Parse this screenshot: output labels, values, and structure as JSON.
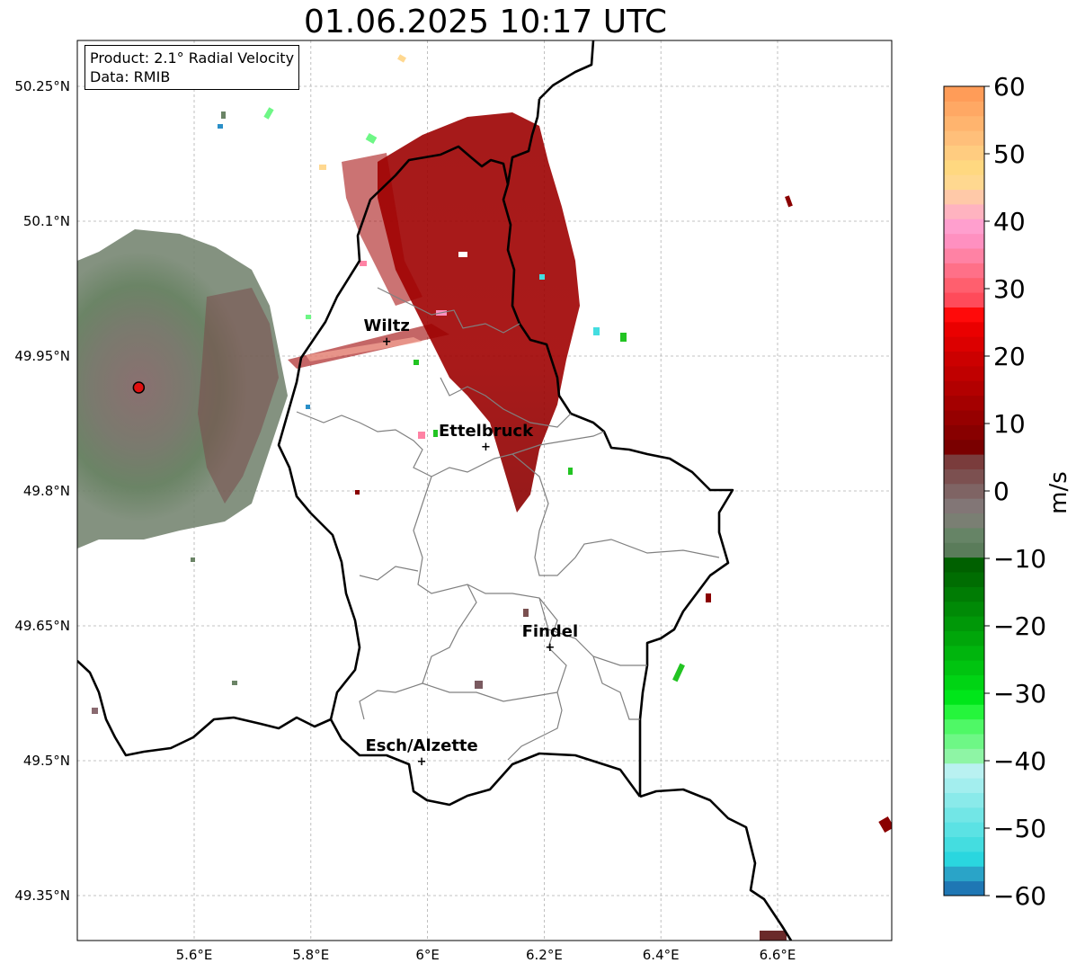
{
  "title": "01.06.2025 10:17 UTC",
  "product_box": {
    "product": "Product: 2.1° Radial Velocity",
    "data": "Data: RMIB"
  },
  "lon_ticks": [
    "5.6°E",
    "5.8°E",
    "6°E",
    "6.2°E",
    "6.4°E",
    "6.6°E"
  ],
  "lat_ticks": [
    "50.25°N",
    "50.1°N",
    "49.95°N",
    "49.8°N",
    "49.65°N",
    "49.5°N",
    "49.35°N"
  ],
  "cities": [
    {
      "name": "Wiltz",
      "lon": 5.93,
      "lat": 49.967
    },
    {
      "name": "Ettelbruck",
      "lon": 6.1,
      "lat": 49.85
    },
    {
      "name": "Findel",
      "lon": 6.21,
      "lat": 49.627
    },
    {
      "name": "Esch/Alzette",
      "lon": 5.99,
      "lat": 49.5
    }
  ],
  "radar_site": {
    "lon": 5.505,
    "lat": 49.915
  },
  "colorbar": {
    "label": "m/s",
    "min": -60,
    "max": 60,
    "ticks": [
      "60",
      "50",
      "40",
      "30",
      "20",
      "10",
      "0",
      "−10",
      "−20",
      "−30",
      "−40",
      "−50",
      "−60"
    ],
    "colors": [
      "#1f77b4",
      "#2aa4c8",
      "#2ad6df",
      "#44dde0",
      "#5be2e4",
      "#72e6e6",
      "#8aeaea",
      "#a3eeee",
      "#b9f1f1",
      "#8ef5a5",
      "#6ef786",
      "#4ff866",
      "#25f53c",
      "#00e61a",
      "#00d414",
      "#00c410",
      "#00b50d",
      "#00a60a",
      "#009808",
      "#008a06",
      "#007c04",
      "#006d02",
      "#006000",
      "#5a7c5a",
      "#668466",
      "#7a7f73",
      "#827676",
      "#7f6464",
      "#7c5050",
      "#7a3c3c",
      "#7a0000",
      "#880000",
      "#960000",
      "#a40000",
      "#b20000",
      "#c00000",
      "#cc0000",
      "#dc0000",
      "#ea0000",
      "#ff0a0a",
      "#ff4b5a",
      "#ff5f6e",
      "#ff7088",
      "#ff82a4",
      "#ff90c0",
      "#ff9fce",
      "#ffb3c0",
      "#ffc9a8",
      "#ffd890",
      "#ffd880",
      "#ffcc80",
      "#ffbf7a",
      "#ffb46e",
      "#ffa864",
      "#ff9c58"
    ]
  }
}
